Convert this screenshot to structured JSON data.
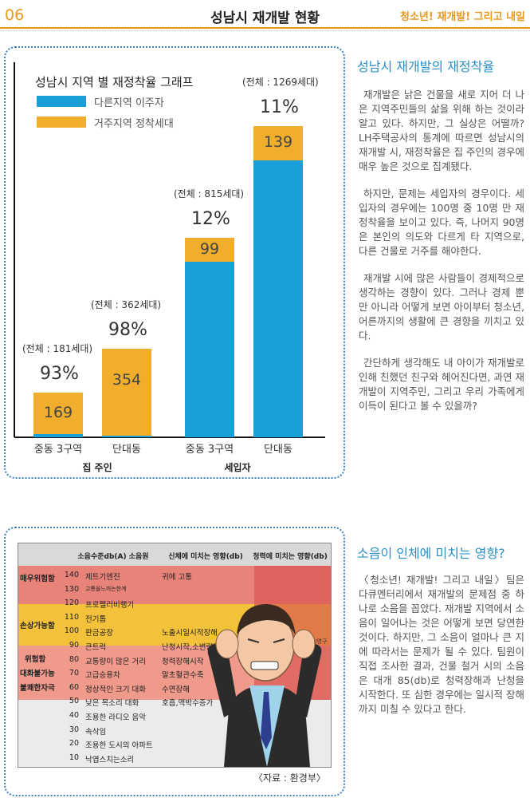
{
  "header": {
    "page_number": "06",
    "title": "성남시 재개발 현황",
    "series_brand": "청소년! 재개발! 그리고 내일"
  },
  "chart_data": {
    "type": "bar",
    "title": "성남시 지역 별 재정착율 그래프",
    "legend": [
      "다른지역 이주자",
      "거주지역 정착세대"
    ],
    "legend_position": "top-left",
    "colors": {
      "moved": "#1aa0d8",
      "settled": "#f0ae2c"
    },
    "categories": [
      "중동 3구역",
      "단대동",
      "중동 3구역",
      "단대동"
    ],
    "groups": [
      {
        "label": "집 주인",
        "categories": [
          0,
          1
        ]
      },
      {
        "label": "세입자",
        "categories": [
          2,
          3
        ]
      }
    ],
    "totals_labels": [
      "(전체 : 181세대)",
      "(전체 : 362세대)",
      "(전체 : 815세대)",
      "(전체 : 1269세대)"
    ],
    "percent_labels": [
      "93%",
      "98%",
      "12%",
      "11%"
    ],
    "series": [
      {
        "name": "다른지역 이주자",
        "values": [
          12,
          8,
          716,
          1130
        ]
      },
      {
        "name": "거주지역 정착세대",
        "values": [
          169,
          354,
          99,
          139
        ]
      }
    ],
    "data_labels": [
      "169",
      "354",
      "99",
      "139"
    ],
    "ylim": [
      0,
      1269
    ],
    "grid": false
  },
  "section1": {
    "heading": "성남시 재개발의 재정착율",
    "paragraphs": [
      "재개발은 낡은 건물을 새로 지어 더 나은 지역주민들의 삶을 위해 하는 것이라 알고 있다. 하지만, 그 실상은 어떨까? LH주택공사의 통계에 따르면 성남시의 재개발 시, 재정착율은 집 주인의 경우에 매우 높은 것으로 집계됐다.",
      "하지만, 문제는 세입자의 경우이다. 세입자의 경우에는 100명 중 10명 만 재정착율을 보이고 있다. 즉, 나머지 90명은 본인의 의도와 다르게 타 지역으로, 다른 건물로 거주를 해야한다.",
      "재개발 시에 많은 사람들이 경제적으로 생각하는 경향이 있다. 그러나 경제 뿐 만 아니라 어떻게 보면 아이부터 청소년, 어른까지의 생활에 큰 경향을 끼치고 있다.",
      "간단하게 생각해도 내 아이가 재개발로 인해 친했던 친구와 헤어진다면, 과연 재개발이 지역주민, 그리고 우리 가족에게 이득이 된다고 볼 수 있을까?"
    ]
  },
  "noise_table": {
    "headers": [
      "소음수준db(A) 소음원",
      "신체에 미치는 영향(db)",
      "청력에 미치는 영향(db)"
    ],
    "zones": [
      "매우위험함",
      "손상가능함",
      "위험함",
      "대화불가능",
      "불쾌한자극"
    ],
    "rows": [
      {
        "db": "140",
        "source": "제트기엔진",
        "body": "귀에 고통"
      },
      {
        "db": "130",
        "source": "고통을느끼는한계",
        "body": ""
      },
      {
        "db": "120",
        "source": "프로펠러비행기",
        "body": ""
      },
      {
        "db": "110",
        "source": "전기톱",
        "body": ""
      },
      {
        "db": "100",
        "source": "판금공장",
        "body": "노출시일시적장해"
      },
      {
        "db": "90",
        "source": "큰트럭",
        "body": "난청시작,소변량증가"
      },
      {
        "db": "80",
        "source": "교통량이 많은 거리",
        "body": "청력장해시작"
      },
      {
        "db": "70",
        "source": "고급승용차",
        "body": "말초혈관수축"
      },
      {
        "db": "60",
        "source": "정상적인 크기 대화",
        "body": "수면장해"
      },
      {
        "db": "50",
        "source": "낮은 목소리 대화",
        "body": "호흡,맥박수증가"
      },
      {
        "db": "40",
        "source": "조용한 라디오 음악",
        "body": ""
      },
      {
        "db": "30",
        "source": "속삭임",
        "body": ""
      },
      {
        "db": "20",
        "source": "조용한 도시의 아파트",
        "body": ""
      },
      {
        "db": "10",
        "source": "낙엽스치는소리",
        "body": ""
      }
    ],
    "hearing_effect": "일시적난청/영구적난청",
    "source_note": "〈자료 : 환경부〉"
  },
  "section2": {
    "heading": "소음이 인체에 미치는 영향?",
    "paragraph": "〈청소년! 재개발! 그리고 내일〉팀은 다큐멘터리에서 재개발의 문제점 중 하나로 소음을 꼽았다. 재개발 지역에서 소음이 일어나는 것은 어떻게 보면 당연한 것이다. 하지만, 그 소음이 얼마나 큰 지에 따라서는 문제가 될 수 있다. 팀원이 직접 조사한 결과, 건물 철거 시의 소음은 대개 85(db)로 청력장해과 난청을 시작한다. 또 심한 경우에는 일시적 장해까지 미칠 수 있다고 한다."
  }
}
